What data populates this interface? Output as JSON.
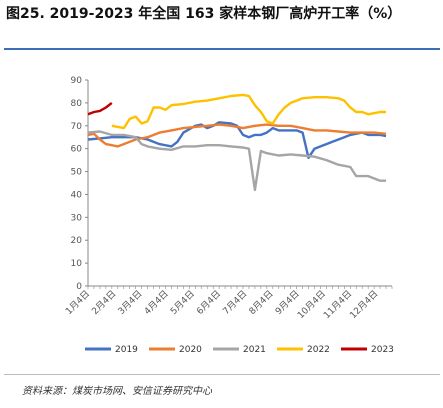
{
  "title": "图25. 2019-2023 年全国 163 家样本钢厂高炉开工率（%）",
  "source": "资料来源：煤炭市场网、安信证券研究中心",
  "chart_data": {
    "type": "line",
    "title": "图25. 2019-2023 年全国 163 家样本钢厂高炉开工率（%）",
    "xlabel": "",
    "ylabel": "",
    "ylim": [
      0,
      90
    ],
    "yticks": [
      0,
      10,
      20,
      30,
      40,
      50,
      60,
      70,
      80,
      90
    ],
    "x_tick_labels": [
      "1月4日",
      "2月4日",
      "3月4日",
      "4月4日",
      "5月4日",
      "6月4日",
      "7月4日",
      "8月4日",
      "9月4日",
      "10月4日",
      "11月4日",
      "12月4日"
    ],
    "x_domain": [
      0,
      51
    ],
    "grid": false,
    "legend_position": "bottom",
    "series": [
      {
        "name": "2019",
        "color": "#4472c4",
        "values": [
          [
            0,
            64
          ],
          [
            2,
            64.5
          ],
          [
            4,
            65
          ],
          [
            6,
            65
          ],
          [
            8,
            65
          ],
          [
            10,
            64
          ],
          [
            12,
            62
          ],
          [
            14,
            61
          ],
          [
            15,
            63
          ],
          [
            16,
            67
          ],
          [
            18,
            70
          ],
          [
            19,
            70.5
          ],
          [
            20,
            69
          ],
          [
            21,
            70
          ],
          [
            22,
            71.5
          ],
          [
            24,
            71
          ],
          [
            25,
            70
          ],
          [
            26,
            66
          ],
          [
            27,
            65
          ],
          [
            28,
            66
          ],
          [
            29,
            66
          ],
          [
            30,
            67
          ],
          [
            31,
            69
          ],
          [
            32,
            68
          ],
          [
            33,
            68
          ],
          [
            35,
            68
          ],
          [
            36,
            67
          ],
          [
            37,
            56
          ],
          [
            38,
            60
          ],
          [
            39,
            61
          ],
          [
            40,
            62
          ],
          [
            41,
            63
          ],
          [
            42,
            64
          ],
          [
            43,
            65
          ],
          [
            44,
            66
          ],
          [
            46,
            67
          ],
          [
            47,
            66
          ],
          [
            49,
            66
          ],
          [
            50,
            65.5
          ]
        ]
      },
      {
        "name": "2020",
        "color": "#ed7d31",
        "values": [
          [
            0,
            66
          ],
          [
            1,
            66.5
          ],
          [
            2,
            64
          ],
          [
            3,
            62
          ],
          [
            4,
            61.5
          ],
          [
            5,
            61
          ],
          [
            6,
            62
          ],
          [
            8,
            64
          ],
          [
            10,
            65
          ],
          [
            12,
            67
          ],
          [
            14,
            68
          ],
          [
            16,
            69
          ],
          [
            18,
            69.5
          ],
          [
            20,
            70
          ],
          [
            22,
            70.5
          ],
          [
            24,
            70
          ],
          [
            26,
            69
          ],
          [
            28,
            70
          ],
          [
            30,
            70.5
          ],
          [
            32,
            70
          ],
          [
            34,
            70
          ],
          [
            36,
            69
          ],
          [
            38,
            68
          ],
          [
            40,
            68
          ],
          [
            42,
            67.5
          ],
          [
            44,
            67
          ],
          [
            46,
            67
          ],
          [
            48,
            67
          ],
          [
            50,
            66.5
          ]
        ]
      },
      {
        "name": "2021",
        "color": "#a5a5a5",
        "values": [
          [
            0,
            67
          ],
          [
            2,
            67.5
          ],
          [
            4,
            66
          ],
          [
            6,
            66
          ],
          [
            8,
            65
          ],
          [
            9,
            62
          ],
          [
            10,
            61
          ],
          [
            12,
            60
          ],
          [
            14,
            59.5
          ],
          [
            16,
            61
          ],
          [
            18,
            61
          ],
          [
            20,
            61.5
          ],
          [
            22,
            61.5
          ],
          [
            24,
            61
          ],
          [
            26,
            60.5
          ],
          [
            27,
            60
          ],
          [
            28,
            42
          ],
          [
            29,
            59
          ],
          [
            30,
            58
          ],
          [
            32,
            57
          ],
          [
            34,
            57.5
          ],
          [
            36,
            57
          ],
          [
            38,
            56.5
          ],
          [
            40,
            55
          ],
          [
            42,
            53
          ],
          [
            44,
            52
          ],
          [
            45,
            48
          ],
          [
            47,
            48
          ],
          [
            49,
            46
          ],
          [
            50,
            46
          ]
        ]
      },
      {
        "name": "2022",
        "color": "#ffc000",
        "values": [
          [
            4,
            70
          ],
          [
            6,
            69
          ],
          [
            7,
            73
          ],
          [
            8,
            74
          ],
          [
            9,
            71
          ],
          [
            10,
            72
          ],
          [
            11,
            78
          ],
          [
            12,
            78
          ],
          [
            13,
            77
          ],
          [
            14,
            79
          ],
          [
            16,
            79.5
          ],
          [
            18,
            80.5
          ],
          [
            20,
            81
          ],
          [
            22,
            82
          ],
          [
            24,
            83
          ],
          [
            26,
            83.5
          ],
          [
            27,
            83
          ],
          [
            28,
            79
          ],
          [
            29,
            76
          ],
          [
            30,
            72
          ],
          [
            31,
            71
          ],
          [
            32,
            75
          ],
          [
            33,
            78
          ],
          [
            34,
            80
          ],
          [
            35,
            81
          ],
          [
            36,
            82
          ],
          [
            38,
            82.5
          ],
          [
            40,
            82.5
          ],
          [
            42,
            82
          ],
          [
            43,
            81
          ],
          [
            44,
            78
          ],
          [
            45,
            76
          ],
          [
            46,
            76
          ],
          [
            47,
            75
          ],
          [
            48,
            75.5
          ],
          [
            49,
            76
          ],
          [
            50,
            76
          ]
        ]
      },
      {
        "name": "2023",
        "color": "#c00000",
        "values": [
          [
            0,
            75
          ],
          [
            1,
            76
          ],
          [
            2,
            76.5
          ],
          [
            3,
            78
          ],
          [
            4,
            80
          ]
        ]
      }
    ]
  }
}
